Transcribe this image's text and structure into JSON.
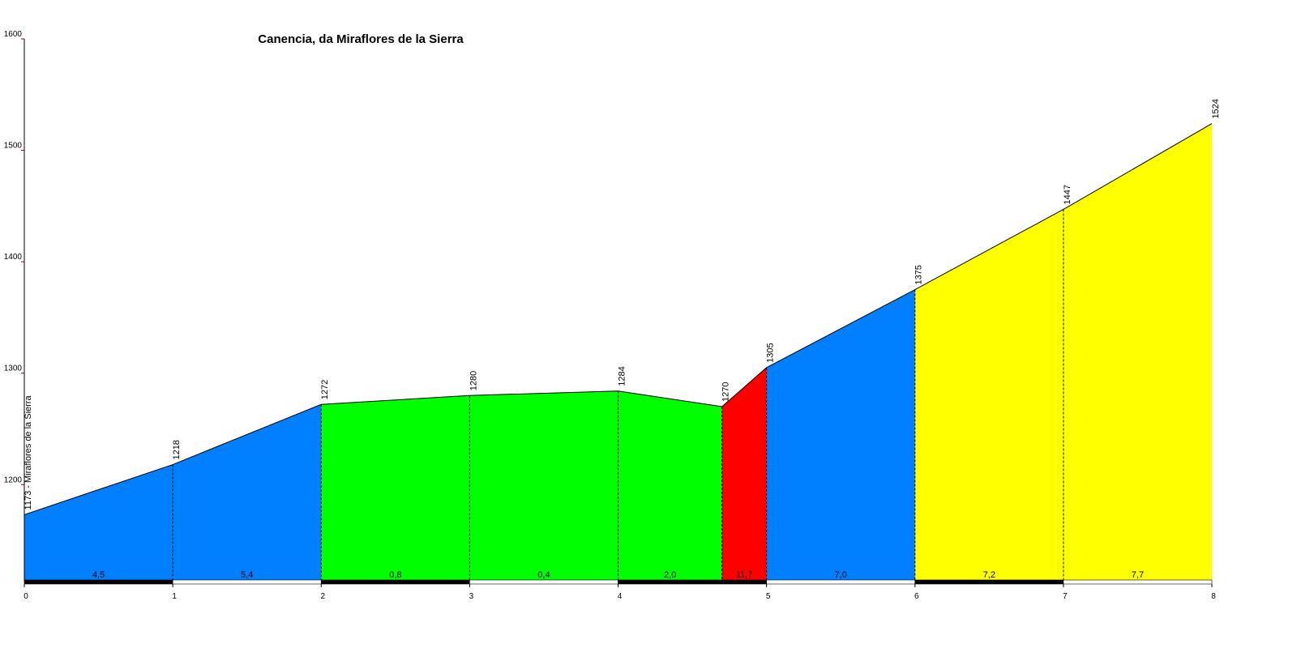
{
  "chart_data": {
    "type": "elevation-profile",
    "title": "Canencia, da Miraflores de la Sierra",
    "x": [
      0,
      1,
      2,
      3,
      4,
      4.7,
      5,
      6,
      7,
      8
    ],
    "values": [
      1173,
      1218,
      1272,
      1280,
      1284,
      1270,
      1305,
      1375,
      1447,
      1524
    ],
    "value_labels": [
      "1173 - Miraflores de la Sierra",
      "1218",
      "1272",
      "1280",
      "1284",
      "1270",
      "1305",
      "1375",
      "1447",
      "1524"
    ],
    "gradients": [
      4.5,
      5.4,
      0.8,
      0.4,
      2.0,
      11.7,
      7.0,
      7.2,
      7.7
    ],
    "gradient_labels": [
      "4,5",
      "5,4",
      "0,8",
      "0,4",
      "2,0",
      "11,7",
      "7,0",
      "7,2",
      "7,7"
    ],
    "segment_colors": [
      "#0080ff",
      "#0080ff",
      "#00ff00",
      "#00ff00",
      "#00ff00",
      "#ff0000",
      "#0080ff",
      "#ffff00",
      "#ffff00"
    ],
    "xlim": [
      0,
      8
    ],
    "ylim": [
      1113,
      1600
    ],
    "xticks": [
      0,
      1,
      2,
      3,
      4,
      5,
      6,
      7,
      8
    ],
    "yticks": [
      1200,
      1300,
      1400,
      1500,
      1600
    ]
  }
}
